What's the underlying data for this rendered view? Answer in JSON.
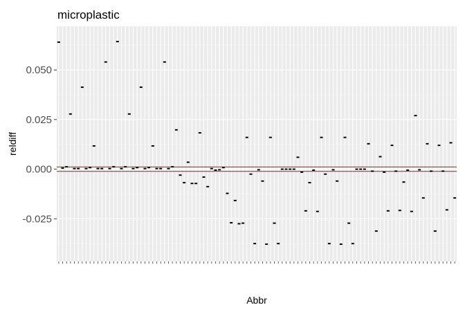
{
  "chart_data": {
    "type": "scatter",
    "title": "microplastic",
    "xlabel": "Abbr",
    "ylabel": "reldiff",
    "ylim": [
      -0.0465,
      0.072
    ],
    "yticks": [
      -0.025,
      0.0,
      0.025,
      0.05
    ],
    "ytick_labels": [
      "-0.025",
      "0.000",
      "0.025",
      "0.050"
    ],
    "reference_lines": [
      0.0011,
      -0.0011
    ],
    "colors": {
      "panel_bg": "#ebebeb",
      "grid_major": "#ffffff",
      "grid_minor": "#f5f5f5",
      "point": "#000000",
      "reference_line": "#b2182b"
    },
    "values": [
      0.064,
      0.0005,
      0.0012,
      0.0278,
      0.0003,
      0.0003,
      0.0413,
      0.0003,
      0.0008,
      0.0117,
      0.0003,
      0.0003,
      0.054,
      0.0003,
      0.0012,
      0.0643,
      0.0003,
      0.0012,
      0.0278,
      0.0003,
      0.0008,
      0.0413,
      0.0003,
      0.0008,
      0.0117,
      0.0003,
      0.0003,
      0.054,
      0.0003,
      0.0012,
      0.0198,
      -0.003,
      -0.0068,
      0.0035,
      -0.0072,
      -0.0072,
      0.0183,
      -0.004,
      -0.0088,
      0.0003,
      -0.0005,
      -0.0003,
      0.0008,
      -0.0122,
      -0.027,
      -0.0158,
      -0.0275,
      -0.0272,
      0.016,
      -0.0025,
      -0.0375,
      -0.0003,
      -0.006,
      -0.0378,
      0.016,
      -0.0272,
      -0.0375,
      0.0,
      0.0,
      0.0,
      0.0,
      0.006,
      -0.0015,
      -0.021,
      -0.0068,
      -0.0005,
      -0.0213,
      0.016,
      -0.0025,
      -0.0375,
      -0.0003,
      -0.006,
      -0.0378,
      0.016,
      -0.0272,
      -0.0375,
      0.0,
      0.0,
      0.0,
      0.0128,
      -0.001,
      -0.0312,
      0.0063,
      -0.0015,
      -0.021,
      0.012,
      -0.001,
      -0.0208,
      -0.0065,
      -0.0005,
      -0.0213,
      0.027,
      -0.0003,
      -0.0145,
      0.0128,
      -0.001,
      -0.0312,
      0.012,
      -0.001,
      -0.0205,
      0.0133,
      -0.0145
    ]
  }
}
